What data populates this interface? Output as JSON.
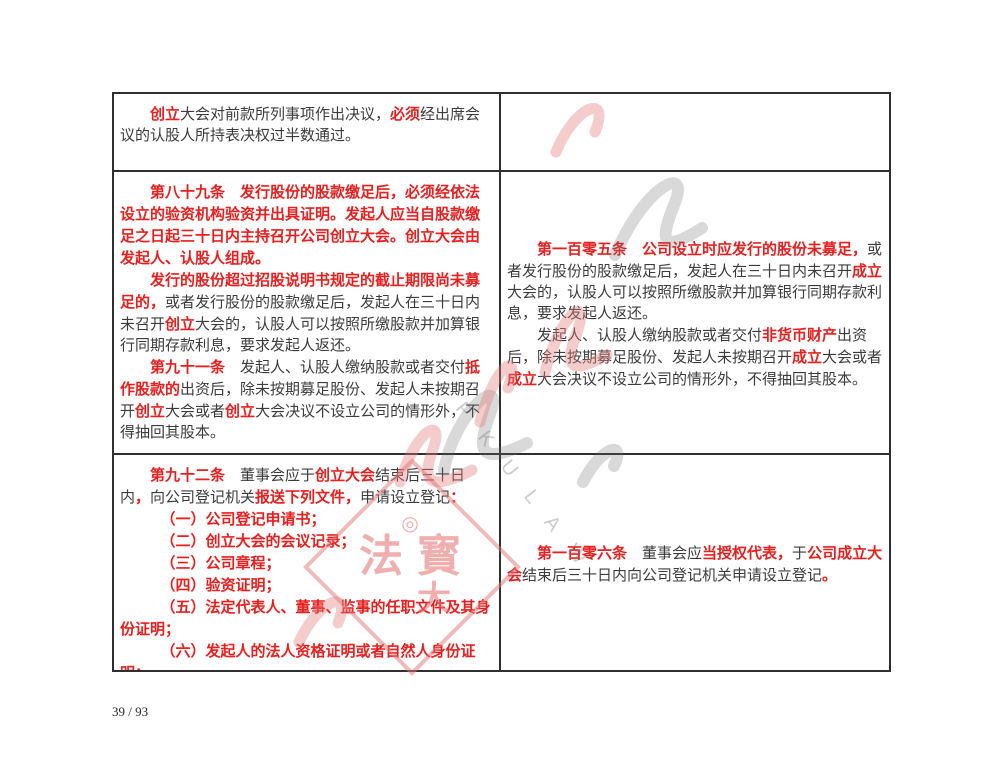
{
  "page": {
    "footer": "39 / 93"
  },
  "colors": {
    "accent_red": "#e81f1f",
    "text_ink": "#3c3c3c",
    "table_border": "#2f2f2f",
    "watermark_pink": "#e47676",
    "watermark_grey": "#8c8c8c"
  },
  "watermark": {
    "letters": "P K U L A W",
    "seal": {
      "circle": "◎",
      "char_left": "法",
      "char_right": "寳",
      "char_bottom": "大"
    }
  },
  "table": {
    "rows": [
      {
        "left": {
          "paragraphs": [
            {
              "ind": 2,
              "runs": [
                {
                  "t": "创立",
                  "r": true
                },
                {
                  "t": "大会对前款所列事项作出决议，"
                },
                {
                  "t": "必须",
                  "r": true
                },
                {
                  "t": "经出席会议的认股人所持表决权过半数通过。"
                }
              ]
            }
          ]
        },
        "right": {
          "paragraphs": []
        }
      },
      {
        "left": {
          "paragraphs": [
            {
              "ind": 2,
              "runs": [
                {
                  "t": "第八十九条　发行股份的股款缴足后，必须经依法设立的验资机构验资并出具证明。发起人应当自股款缴足之日起三十日内主持召开公司创立大会。创立大会由发起人、认股人组成。",
                  "r": true
                }
              ]
            },
            {
              "ind": 2,
              "runs": [
                {
                  "t": "发行的股份超过招股说明书规定的截止期限尚未募足的，",
                  "r": true
                },
                {
                  "t": "或者发行股份的股款缴足后，发起人在三十日内未召开"
                },
                {
                  "t": "创立",
                  "r": true
                },
                {
                  "t": "大会的，认股人可以按照所缴股款并加算银行同期存款利息，要求发起人返还。"
                }
              ]
            },
            {
              "ind": 2,
              "runs": [
                {
                  "t": "第九十一条",
                  "r": true
                },
                {
                  "t": "　发起人、认股人缴纳股款或者交付"
                },
                {
                  "t": "抵作股款的",
                  "r": true
                },
                {
                  "t": "出资后，除未按期募足股份、发起人未按期召开"
                },
                {
                  "t": "创立",
                  "r": true
                },
                {
                  "t": "大会或者"
                },
                {
                  "t": "创立",
                  "r": true
                },
                {
                  "t": "大会决议不设立公司的情形外，不得抽回其股本。"
                }
              ]
            }
          ]
        },
        "right": {
          "paragraphs": [
            {
              "ind": 2,
              "runs": [
                {
                  "t": "第一百零五条　公司设立时应发行的股份未募足，",
                  "r": true
                },
                {
                  "t": "或者发行股份的股款缴足后，发起人在三十日内未召开"
                },
                {
                  "t": "成立",
                  "r": true
                },
                {
                  "t": "大会的，认股人可以按照所缴股款并加算银行同期存款利息，要求发起人返还。"
                }
              ]
            },
            {
              "ind": 2,
              "runs": [
                {
                  "t": "发起人、认股人缴纳股款或者交付"
                },
                {
                  "t": "非货币财产",
                  "r": true
                },
                {
                  "t": "出资后，除未按期募足股份、发起人未按期召开"
                },
                {
                  "t": "成立",
                  "r": true
                },
                {
                  "t": "大会或者"
                },
                {
                  "t": "成立",
                  "r": true
                },
                {
                  "t": "大会决议不设立公司的情形外，不得抽回其股本。"
                }
              ]
            }
          ]
        }
      },
      {
        "left": {
          "paragraphs": [
            {
              "ind": 2,
              "runs": [
                {
                  "t": "第九十二条",
                  "r": true
                },
                {
                  "t": "　董事会应于"
                },
                {
                  "t": "创立大会",
                  "r": true
                },
                {
                  "t": "结束后三十日内"
                },
                {
                  "t": "，",
                  "r": true
                },
                {
                  "t": "向公司登记机关"
                },
                {
                  "t": "报送下列文件，",
                  "r": true
                },
                {
                  "t": "申请设立登记"
                },
                {
                  "t": "：",
                  "r": true
                }
              ]
            },
            {
              "ind": 2.7,
              "runs": [
                {
                  "t": "（一）公司登记申请书；",
                  "r": true
                }
              ]
            },
            {
              "ind": 2.7,
              "runs": [
                {
                  "t": "（二）创立大会的会议记录；",
                  "r": true
                }
              ]
            },
            {
              "ind": 2.7,
              "runs": [
                {
                  "t": "（三）公司章程；",
                  "r": true
                }
              ]
            },
            {
              "ind": 2.7,
              "runs": [
                {
                  "t": "（四）验资证明；",
                  "r": true
                }
              ]
            },
            {
              "ind": 2.7,
              "runs": [
                {
                  "t": "（五）法定代表人、董事、监事的任职文件及其身份证明；",
                  "r": true
                }
              ]
            },
            {
              "ind": 2.7,
              "runs": [
                {
                  "t": "（六）发起人的法人资格证明或者自然人身份证明；",
                  "r": true
                }
              ]
            }
          ]
        },
        "right": {
          "paragraphs": [
            {
              "ind": 2,
              "runs": [
                {
                  "t": "第一百零六条",
                  "r": true
                },
                {
                  "t": "　董事会应"
                },
                {
                  "t": "当授权代表，",
                  "r": true
                },
                {
                  "t": "于"
                },
                {
                  "t": "公司成立大会",
                  "r": true
                },
                {
                  "t": "结束后三十日内向公司登记机关申请设立登记"
                },
                {
                  "t": "。",
                  "r": true
                }
              ]
            }
          ]
        }
      }
    ]
  }
}
